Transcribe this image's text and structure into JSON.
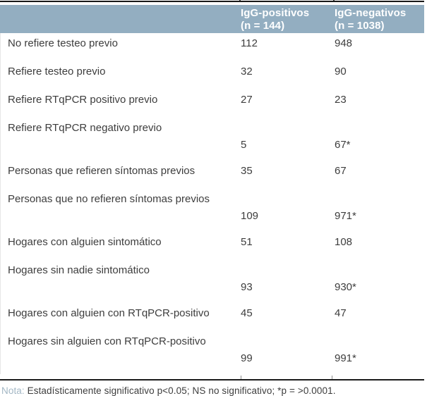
{
  "table": {
    "columns": [
      {
        "label": "IgG-positivos",
        "sub": "(n = 144)"
      },
      {
        "label": "IgG-negativos",
        "sub": "(n = 1038)"
      }
    ],
    "rows": [
      {
        "label": "No refiere testeo previo",
        "igg_pos": "112",
        "igg_neg": "948"
      },
      {
        "label": "Refiere testeo previo",
        "igg_pos": "32",
        "igg_neg": "90"
      },
      {
        "label": "Refiere RTqPCR positivo previo",
        "igg_pos": "27",
        "igg_neg": "23"
      },
      {
        "label": "Refiere RTqPCR negativo previo",
        "igg_pos": "5",
        "igg_neg": "67*"
      },
      {
        "label": "Personas que refieren síntomas previos",
        "igg_pos": "35",
        "igg_neg": "67"
      },
      {
        "label": "Personas que no refieren síntomas previos",
        "igg_pos": "109",
        "igg_neg": "971*"
      },
      {
        "label": "Hogares con alguien sintomático",
        "igg_pos": "51",
        "igg_neg": "108"
      },
      {
        "label": "Hogares sin nadie sintomático",
        "igg_pos": "93",
        "igg_neg": "930*"
      },
      {
        "label": "Hogares con alguien con RTqPCR-positivo",
        "igg_pos": "45",
        "igg_neg": "47"
      },
      {
        "label": "Hogares sin alguien con RTqPCR-positivo",
        "igg_pos": "99",
        "igg_neg": "991*"
      }
    ]
  },
  "footer": {
    "nota_label": "Nota:",
    "text": " Estadísticamente significativo p<0.05; NS no significativo; *p = >0.0001."
  },
  "colors": {
    "header_bg": "#93aec1",
    "header_text": "#ffffff",
    "body_text": "#3d3d3d",
    "nota_label_text": "#a3b7c5",
    "rule": "#1c1c1c"
  },
  "chart_data": {
    "type": "table",
    "columns": [
      "",
      "IgG-positivos (n = 144)",
      "IgG-negativos (n = 1038)"
    ],
    "rows": [
      [
        "No refiere testeo previo",
        112,
        "948"
      ],
      [
        "Refiere testeo previo",
        32,
        "90"
      ],
      [
        "Refiere RTqPCR positivo previo",
        27,
        "23"
      ],
      [
        "Refiere RTqPCR negativo previo",
        5,
        "67*"
      ],
      [
        "Personas que refieren síntomas previos",
        35,
        "67"
      ],
      [
        "Personas que no refieren síntomas previos",
        109,
        "971*"
      ],
      [
        "Hogares con alguien sintomático",
        51,
        "108"
      ],
      [
        "Hogares sin nadie sintomático",
        93,
        "930*"
      ],
      [
        "Hogares con alguien con RTqPCR-positivo",
        45,
        "47"
      ],
      [
        "Hogares sin alguien con RTqPCR-positivo",
        99,
        "991*"
      ]
    ],
    "note": "Nota: Estadísticamente significativo p<0.05; NS no significativo; *p = >0.0001."
  }
}
